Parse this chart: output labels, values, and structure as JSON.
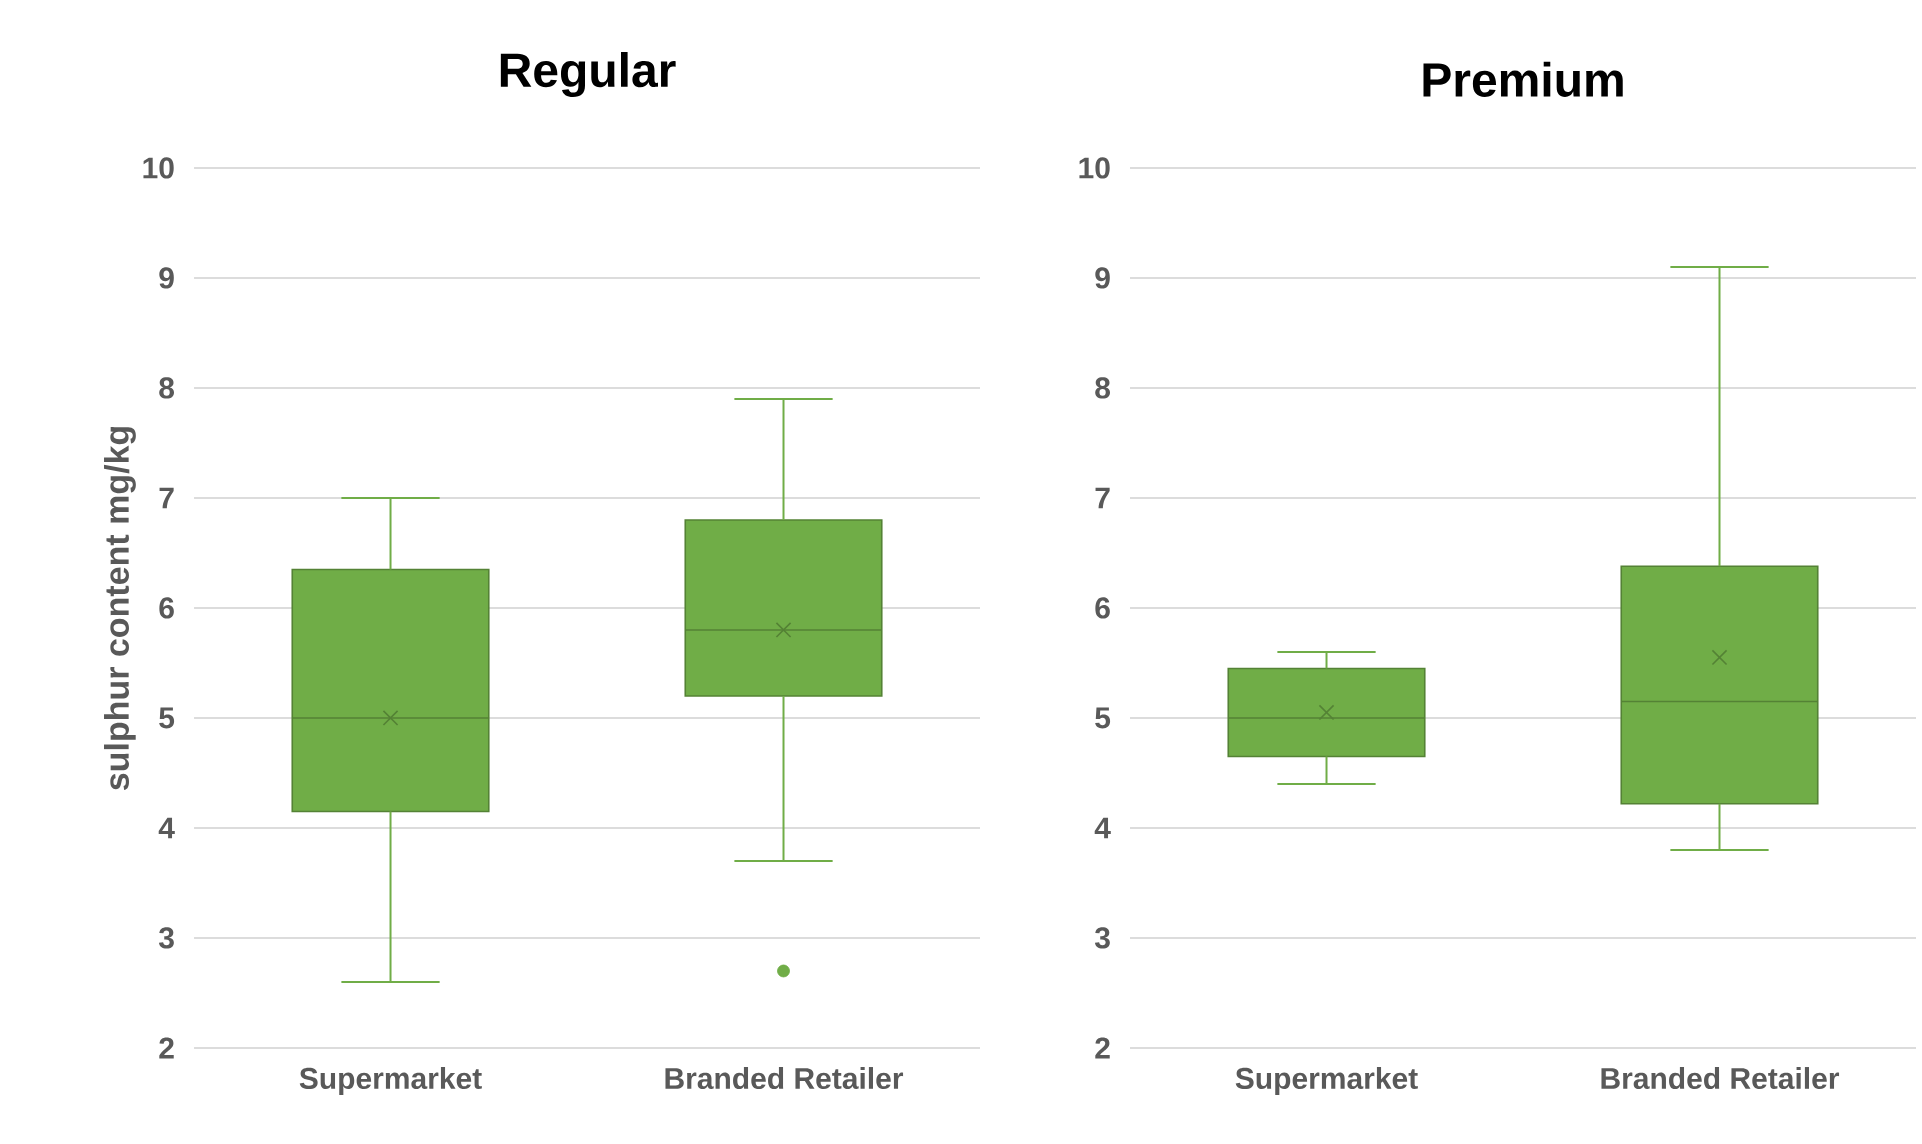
{
  "chart_data": [
    {
      "type": "box",
      "title": "Regular",
      "ylabel": "sulphur content mg/kg",
      "categories": [
        "Supermarket",
        "Branded Retailer"
      ],
      "ylim": [
        2,
        10
      ],
      "yticks": [
        2,
        3,
        4,
        5,
        6,
        7,
        8,
        9,
        10
      ],
      "grid": "y",
      "marker": "cross",
      "series": [
        {
          "color": "#70ad47",
          "boxes": [
            {
              "low": 2.6,
              "q1": 4.15,
              "median": 5.0,
              "q3": 6.35,
              "high": 7.0,
              "mean": 5.0
            },
            {
              "low": 3.7,
              "q1": 5.2,
              "median": 5.8,
              "q3": 6.8,
              "high": 7.9,
              "mean": 5.8,
              "outliers": [
                2.7
              ]
            }
          ]
        }
      ]
    },
    {
      "type": "box",
      "title": "Premium",
      "categories": [
        "Supermarket",
        "Branded Retailer"
      ],
      "ylim": [
        2,
        10
      ],
      "yticks": [
        2,
        3,
        4,
        5,
        6,
        7,
        8,
        9,
        10
      ],
      "grid": "y",
      "marker": "cross",
      "series": [
        {
          "color": "#70ad47",
          "boxes": [
            {
              "low": 4.4,
              "q1": 4.65,
              "median": 5.0,
              "q3": 5.45,
              "high": 5.6,
              "mean": 5.05
            },
            {
              "low": 3.8,
              "q1": 4.22,
              "median": 5.15,
              "q3": 6.38,
              "high": 9.1,
              "mean": 5.55
            }
          ]
        }
      ]
    }
  ]
}
